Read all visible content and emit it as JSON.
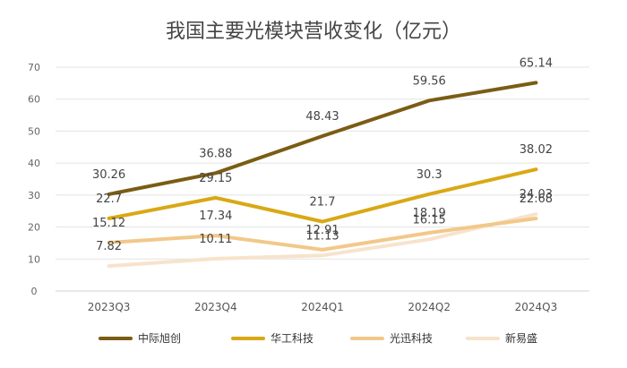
{
  "chart_data": {
    "type": "line",
    "title": "我国主要光模块营收变化（亿元）",
    "categories": [
      "2023Q3",
      "2023Q4",
      "2024Q1",
      "2024Q2",
      "2024Q3"
    ],
    "ylim": [
      0,
      70
    ],
    "yticks": [
      0,
      10,
      20,
      30,
      40,
      50,
      60,
      70
    ],
    "grid": true,
    "legend_position": "bottom",
    "series": [
      {
        "name": "中际旭创",
        "color": "#7a5c14",
        "values": [
          30.26,
          36.88,
          48.43,
          59.56,
          65.14
        ]
      },
      {
        "name": "华工科技",
        "color": "#d9a815",
        "values": [
          22.7,
          29.15,
          21.7,
          30.3,
          38.02
        ]
      },
      {
        "name": "光迅科技",
        "color": "#f2c889",
        "values": [
          15.12,
          17.34,
          12.91,
          18.19,
          22.68
        ]
      },
      {
        "name": "新易盛",
        "color": "#f7e3cc",
        "values": [
          7.82,
          10.11,
          11.13,
          16.15,
          24.03
        ]
      }
    ]
  }
}
